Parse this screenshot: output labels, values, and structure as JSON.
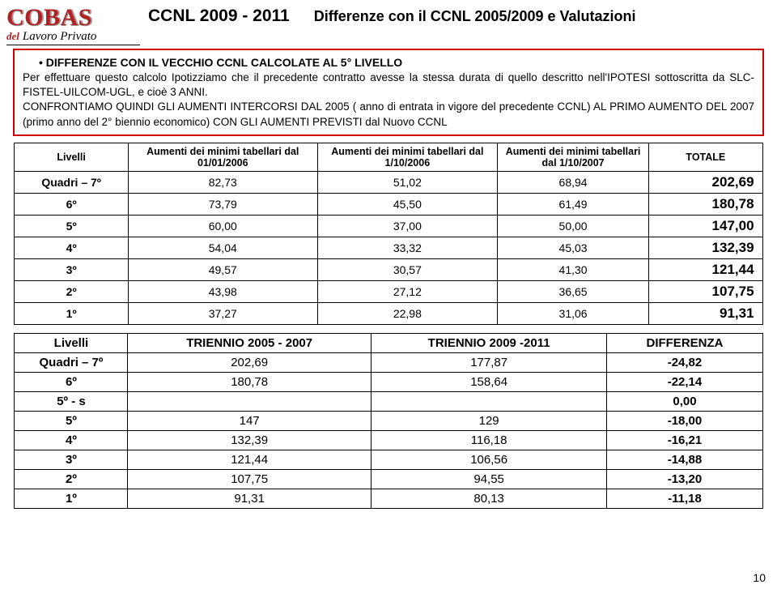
{
  "logo": {
    "cobas": "COBAS",
    "del": "del",
    "lavoro": "Lavoro Privato"
  },
  "header": {
    "ccnl": "CCNL  2009 - 2011",
    "diff": "Differenze con il CCNL 2005/2009 e Valutazioni"
  },
  "box": {
    "headline": "DIFFERENZE CON IL VECCHIO CCNL CALCOLATE AL 5° LIVELLO",
    "line2": "Per effettuare questo calcolo Ipotizziamo che il precedente contratto avesse la stessa durata di quello  descritto nell'IPOTESI sottoscritta da SLC-FISTEL-UILCOM-UGL, e cioè 3 ANNI.",
    "line3": "CONFRONTIAMO QUINDI GLI AUMENTI INTERCORSI DAL 2005 ( anno di entrata in vigore del precedente CCNL) AL PRIMO AUMENTO DEL 2007 (primo anno del 2° biennio economico) CON GLI AUMENTI PREVISTI dal Nuovo CCNL"
  },
  "t1": {
    "h_livelli": "Livelli",
    "h_c1": "Aumenti dei minimi tabellari dal 01/01/2006",
    "h_c2": "Aumenti dei minimi tabellari dal 1/10/2006",
    "h_c3": "Aumenti dei minimi tabellari dal 1/10/2007",
    "h_tot": "TOTALE",
    "rows": [
      {
        "l": "Quadri – 7º",
        "c1": "82,73",
        "c2": "51,02",
        "c3": "68,94",
        "t": "202,69"
      },
      {
        "l": "6º",
        "c1": "73,79",
        "c2": "45,50",
        "c3": "61,49",
        "t": "180,78"
      },
      {
        "l": "5º",
        "c1": "60,00",
        "c2": "37,00",
        "c3": "50,00",
        "t": "147,00"
      },
      {
        "l": "4º",
        "c1": "54,04",
        "c2": "33,32",
        "c3": "45,03",
        "t": "132,39"
      },
      {
        "l": "3º",
        "c1": "49,57",
        "c2": "30,57",
        "c3": "41,30",
        "t": "121,44"
      },
      {
        "l": "2º",
        "c1": "43,98",
        "c2": "27,12",
        "c3": "36,65",
        "t": "107,75"
      },
      {
        "l": "1º",
        "c1": "37,27",
        "c2": "22,98",
        "c3": "31,06",
        "t": "91,31"
      }
    ]
  },
  "t2": {
    "h_livelli": "Livelli",
    "h_c1": "TRIENNIO 2005 - 2007",
    "h_c2": "TRIENNIO 2009 -2011",
    "h_c3": "DIFFERENZA",
    "rows": [
      {
        "l": "Quadri – 7º",
        "c1": "202,69",
        "c2": "177,87",
        "c3": "-24,82"
      },
      {
        "l": "6º",
        "c1": "180,78",
        "c2": "158,64",
        "c3": "-22,14"
      },
      {
        "l": "5º - s",
        "c1": "",
        "c2": "",
        "c3": "0,00"
      },
      {
        "l": "5º",
        "c1": "147",
        "c2": "129",
        "c3": "-18,00"
      },
      {
        "l": "4º",
        "c1": "132,39",
        "c2": "116,18",
        "c3": "-16,21"
      },
      {
        "l": "3º",
        "c1": "121,44",
        "c2": "106,56",
        "c3": "-14,88"
      },
      {
        "l": "2º",
        "c1": "107,75",
        "c2": "94,55",
        "c3": "-13,20"
      },
      {
        "l": "1º",
        "c1": "91,31",
        "c2": "80,13",
        "c3": "-11,18"
      }
    ]
  },
  "page": "10"
}
